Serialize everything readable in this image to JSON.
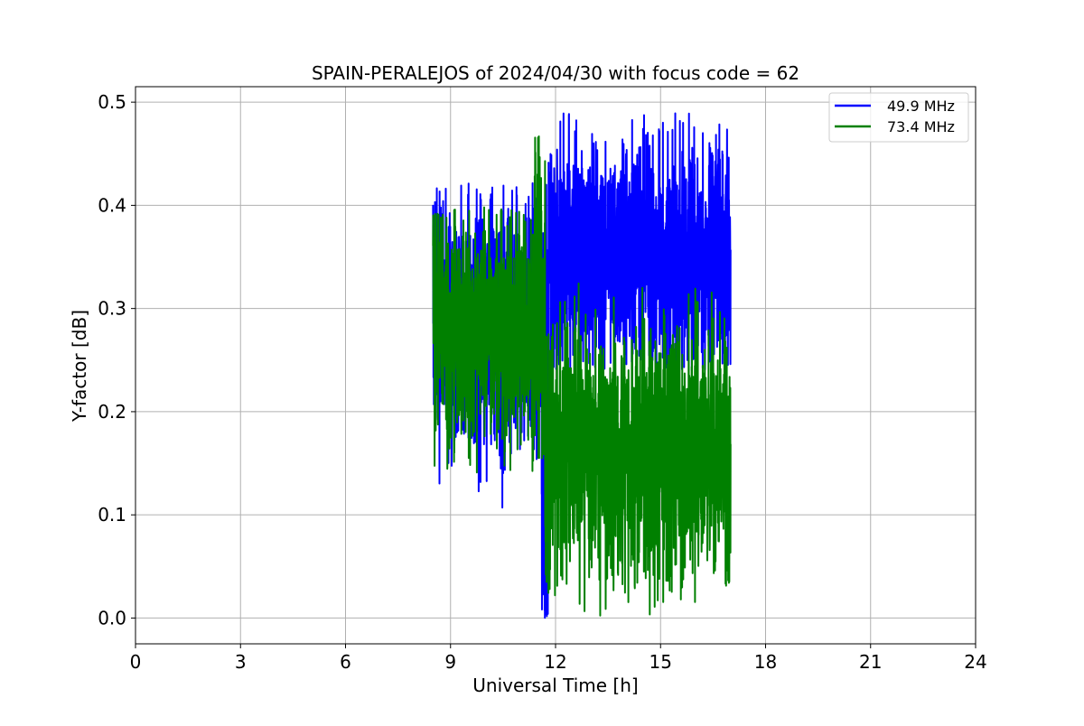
{
  "chart_data": {
    "type": "line",
    "title": "SPAIN-PERALEJOS of 2024/04/30 with focus code = 62",
    "xlabel": "Universal Time [h]",
    "ylabel": "Y-factor [dB]",
    "xlim": [
      0,
      24
    ],
    "ylim": [
      -0.025,
      0.515
    ],
    "xticks": [
      0,
      3,
      6,
      9,
      12,
      15,
      18,
      21,
      24
    ],
    "xtick_labels": [
      "0",
      "3",
      "6",
      "9",
      "12",
      "15",
      "18",
      "21",
      "24"
    ],
    "yticks": [
      0.0,
      0.1,
      0.2,
      0.3,
      0.4,
      0.5
    ],
    "ytick_labels": [
      "0.0",
      "0.1",
      "0.2",
      "0.3",
      "0.4",
      "0.5"
    ],
    "grid": true,
    "legend_position": "top-right",
    "series": [
      {
        "name": "49.9 MHz",
        "color": "#0000ff",
        "segments": [
          {
            "x0": 8.5,
            "x1": 11.6,
            "center": 0.28,
            "spread": 0.06,
            "min": 0.1,
            "max": 0.425
          },
          {
            "x0": 11.6,
            "x1": 11.8,
            "center": 0.14,
            "spread": 0.14,
            "min": 0.0,
            "max": 0.46
          },
          {
            "x0": 11.8,
            "x1": 17.0,
            "center": 0.35,
            "spread": 0.055,
            "min": 0.24,
            "max": 0.49
          }
        ]
      },
      {
        "name": "73.4 MHz",
        "color": "#008000",
        "segments": [
          {
            "x0": 8.5,
            "x1": 11.4,
            "center": 0.28,
            "spread": 0.055,
            "min": 0.14,
            "max": 0.4
          },
          {
            "x0": 11.4,
            "x1": 11.7,
            "center": 0.32,
            "spread": 0.1,
            "min": 0.15,
            "max": 0.468
          },
          {
            "x0": 11.7,
            "x1": 17.0,
            "center": 0.16,
            "spread": 0.06,
            "min": 0.0,
            "max": 0.38
          }
        ]
      }
    ]
  }
}
